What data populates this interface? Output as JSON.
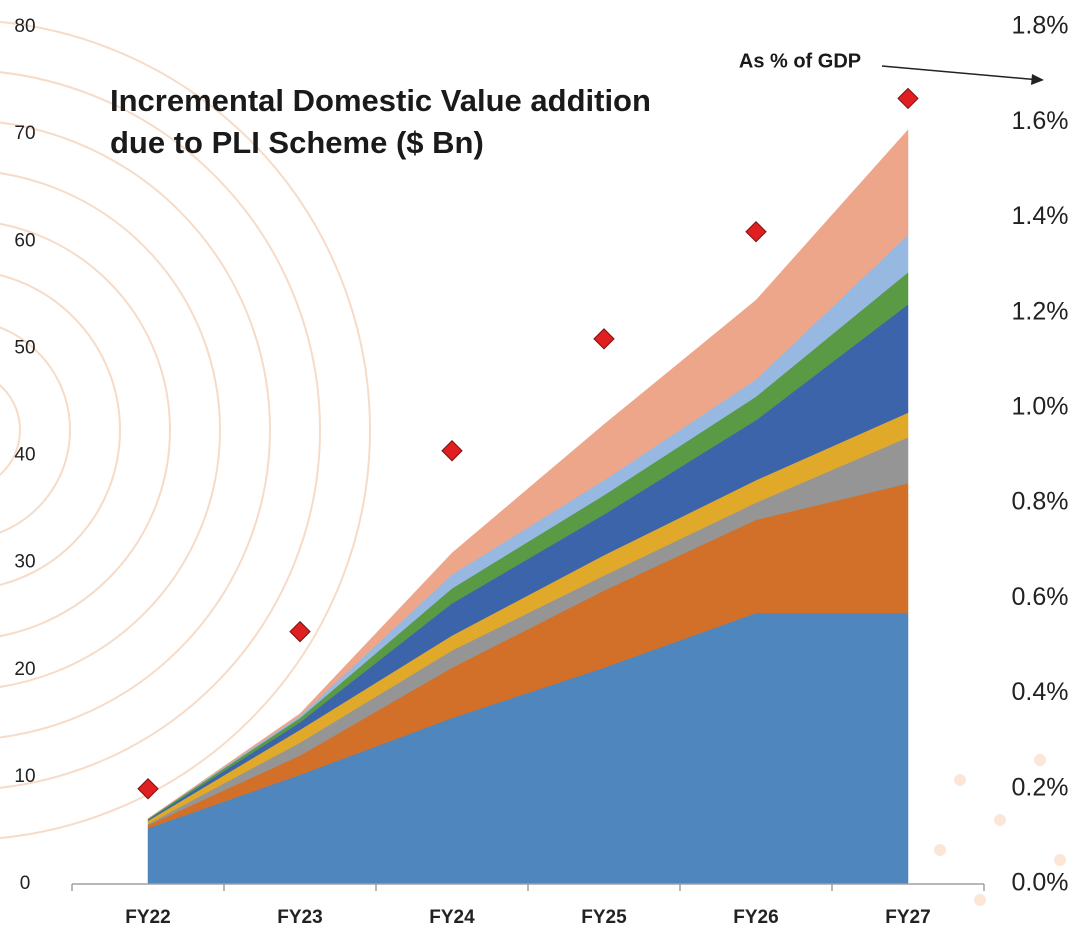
{
  "chart_data": {
    "type": "area",
    "title": "Incremental Domestic Value addition due to PLI Scheme ($ Bn)",
    "annotation": "As % of GDP",
    "categories": [
      "FY22",
      "FY23",
      "FY24",
      "FY25",
      "FY26",
      "FY27"
    ],
    "series": [
      {
        "color": "#4f86bd",
        "values": [
          5.2,
          10.2,
          15.5,
          20.2,
          25.3,
          25.3
        ]
      },
      {
        "color": "#d2702a",
        "values": [
          0.3,
          1.8,
          4.7,
          7.2,
          8.7,
          12.1
        ]
      },
      {
        "color": "#959595",
        "values": [
          0.1,
          1.2,
          1.6,
          1.4,
          1.6,
          4.3
        ]
      },
      {
        "color": "#e0a92a",
        "values": [
          0.3,
          1.2,
          1.4,
          1.9,
          2.1,
          2.3
        ]
      },
      {
        "color": "#3c64aa",
        "values": [
          0.1,
          0.7,
          3.0,
          3.8,
          5.6,
          10.1
        ]
      },
      {
        "color": "#5a9a45",
        "values": [
          0.1,
          0.4,
          1.4,
          1.8,
          2.2,
          3.0
        ]
      },
      {
        "color": "#97b8e0",
        "values": [
          0,
          0.2,
          1.3,
          1.4,
          1.6,
          3.5
        ]
      },
      {
        "color": "#eea68a",
        "values": [
          0,
          0.2,
          2.0,
          5.2,
          7.4,
          9.8
        ]
      },
      {
        "type": "scatter",
        "axis": "y2",
        "color": "#e02020",
        "values": [
          0.2,
          0.53,
          0.91,
          1.145,
          1.37,
          1.65
        ]
      }
    ],
    "ylim": [
      0,
      80
    ],
    "yticks": [
      0,
      10,
      20,
      30,
      40,
      50,
      60,
      70,
      80
    ],
    "y2lim": [
      0,
      1.8
    ],
    "y2ticks": [
      {
        "value": 0,
        "label": "0.0%"
      },
      {
        "value": 0.2,
        "label": "0.2%"
      },
      {
        "value": 0.4,
        "label": "0.4%"
      },
      {
        "value": 0.6,
        "label": "0.6%"
      },
      {
        "value": 0.8,
        "label": "0.8%"
      },
      {
        "value": 1.0,
        "label": "1.0%"
      },
      {
        "value": 1.2,
        "label": "1.2%"
      },
      {
        "value": 1.4,
        "label": "1.4%"
      },
      {
        "value": 1.6,
        "label": "1.6%"
      },
      {
        "value": 1.8,
        "label": "1.8%"
      }
    ]
  }
}
